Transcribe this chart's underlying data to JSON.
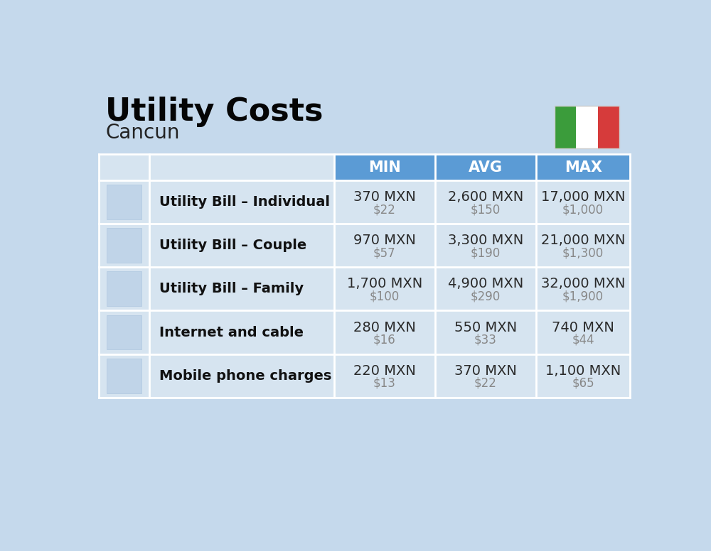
{
  "title": "Utility Costs",
  "subtitle": "Cancun",
  "background_color": "#c5d9ec",
  "header_bg_color": "#5b9bd5",
  "header_text_color": "#ffffff",
  "row_bg_color": "#d6e4f0",
  "separator_color": "#ffffff",
  "cell_text_color": "#2a2a2a",
  "usd_text_color": "#888888",
  "label_text_color": "#111111",
  "title_color": "#050505",
  "subtitle_color": "#222222",
  "rows": [
    {
      "label": "Utility Bill – Individual",
      "min_mxn": "370 MXN",
      "min_usd": "$22",
      "avg_mxn": "2,600 MXN",
      "avg_usd": "$150",
      "max_mxn": "17,000 MXN",
      "max_usd": "$1,000"
    },
    {
      "label": "Utility Bill – Couple",
      "min_mxn": "970 MXN",
      "min_usd": "$57",
      "avg_mxn": "3,300 MXN",
      "avg_usd": "$190",
      "max_mxn": "21,000 MXN",
      "max_usd": "$1,300"
    },
    {
      "label": "Utility Bill – Family",
      "min_mxn": "1,700 MXN",
      "min_usd": "$100",
      "avg_mxn": "4,900 MXN",
      "avg_usd": "$290",
      "max_mxn": "32,000 MXN",
      "max_usd": "$1,900"
    },
    {
      "label": "Internet and cable",
      "min_mxn": "280 MXN",
      "min_usd": "$16",
      "avg_mxn": "550 MXN",
      "avg_usd": "$33",
      "max_mxn": "740 MXN",
      "max_usd": "$44"
    },
    {
      "label": "Mobile phone charges",
      "min_mxn": "220 MXN",
      "min_usd": "$13",
      "avg_mxn": "370 MXN",
      "avg_usd": "$22",
      "max_mxn": "1,100 MXN",
      "max_usd": "$65"
    }
  ],
  "col_headers": [
    "MIN",
    "AVG",
    "MAX"
  ],
  "flag_green": "#3b9c3b",
  "flag_white": "#ffffff",
  "flag_red": "#d63b3b"
}
